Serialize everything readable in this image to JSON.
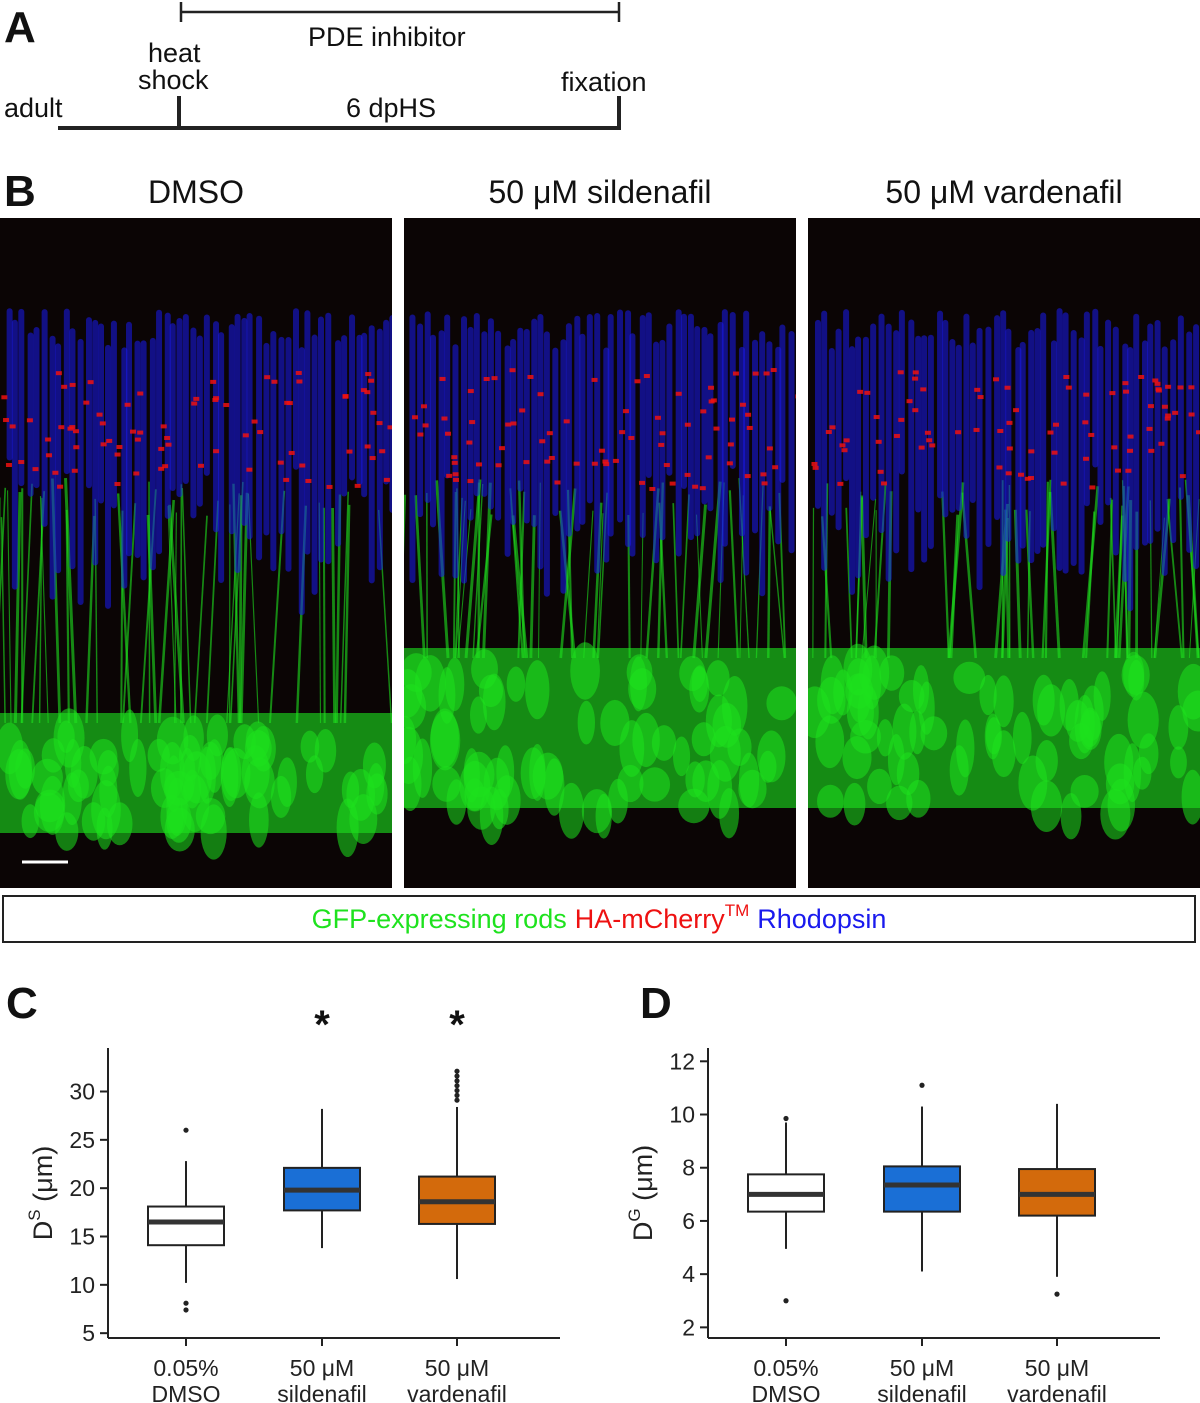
{
  "panels": {
    "a": "A",
    "b": "B",
    "c": "C",
    "d": "D"
  },
  "timeline": {
    "treatment_label": "PDE inhibitor",
    "heat_shock_line1": "heat",
    "heat_shock_line2": "shock",
    "fixation_label": "fixation",
    "adult_label": "adult",
    "duration_label": "6 dpHS"
  },
  "conditions": [
    "DMSO",
    "50 μM sildenafil",
    "50 μM vardenafil"
  ],
  "legend": {
    "green_text": "GFP-expressing rods",
    "red_text": "HA-mCherry",
    "red_superscript": "TM",
    "blue_text": "Rhodopsin",
    "colors": {
      "green": "#1ee21e",
      "red": "#ee1111",
      "blue": "#1a1aee"
    }
  },
  "chart_data": [
    {
      "type": "box",
      "ylabel_main": "D",
      "ylabel_sup": "S",
      "ylabel_unit": "(μm)",
      "ylim": [
        4.5,
        34.5
      ],
      "yticks": [
        5,
        10,
        15,
        20,
        25,
        30
      ],
      "categories": [
        [
          "0.05%",
          "DMSO"
        ],
        [
          "50 μM",
          "sildenafil"
        ],
        [
          "50 μM",
          "vardenafil"
        ]
      ],
      "boxes": [
        {
          "q1": 14.1,
          "median": 16.5,
          "q3": 18.1,
          "whisker_low": 10.2,
          "whisker_high": 22.8,
          "outliers": [
            26.0,
            8.1,
            7.4
          ],
          "color": "#ffffff",
          "significance": ""
        },
        {
          "q1": 17.7,
          "median": 19.8,
          "q3": 22.1,
          "whisker_low": 13.8,
          "whisker_high": 28.2,
          "outliers": [],
          "color": "#1a6fd6",
          "significance": "*"
        },
        {
          "q1": 16.3,
          "median": 18.6,
          "q3": 21.2,
          "whisker_low": 10.6,
          "whisker_high": 28.4,
          "outliers": [
            29.1,
            29.6,
            30.1,
            30.6,
            31.1,
            31.6,
            32.1
          ],
          "color": "#d36a0c",
          "significance": "*"
        }
      ]
    },
    {
      "type": "box",
      "ylabel_main": "D",
      "ylabel_sup": "G",
      "ylabel_unit": "(μm)",
      "ylim": [
        1.6,
        12.5
      ],
      "yticks": [
        2,
        4,
        6,
        8,
        10,
        12
      ],
      "categories": [
        [
          "0.05%",
          "DMSO"
        ],
        [
          "50 μM",
          "sildenafil"
        ],
        [
          "50 μM",
          "vardenafil"
        ]
      ],
      "boxes": [
        {
          "q1": 6.35,
          "median": 7.0,
          "q3": 7.75,
          "whisker_low": 4.95,
          "whisker_high": 9.7,
          "outliers": [
            9.85,
            3.0
          ],
          "color": "#ffffff",
          "significance": ""
        },
        {
          "q1": 6.35,
          "median": 7.35,
          "q3": 8.05,
          "whisker_low": 4.1,
          "whisker_high": 10.3,
          "outliers": [
            11.1
          ],
          "color": "#1a6fd6",
          "significance": ""
        },
        {
          "q1": 6.2,
          "median": 7.0,
          "q3": 7.95,
          "whisker_low": 3.9,
          "whisker_high": 10.4,
          "outliers": [
            3.25
          ],
          "color": "#d36a0c",
          "significance": ""
        }
      ]
    }
  ]
}
